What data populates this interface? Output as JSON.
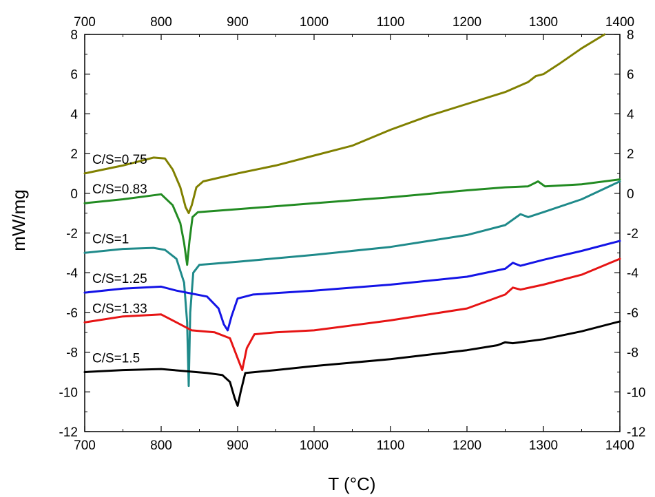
{
  "chart_data": {
    "type": "line",
    "title": "",
    "xlabel": "T (°C)",
    "ylabel": "mW/mg",
    "xlim": [
      700,
      1400
    ],
    "ylim": [
      -12,
      8
    ],
    "x_ticks": [
      700,
      800,
      900,
      1000,
      1100,
      1200,
      1300,
      1400
    ],
    "y_ticks": [
      -12,
      -10,
      -8,
      -6,
      -4,
      -2,
      0,
      2,
      4,
      6,
      8
    ],
    "grid": false,
    "legend": "none",
    "series": [
      {
        "name": "C/S=0.75",
        "color": "#808000",
        "points": [
          [
            700,
            1.0
          ],
          [
            750,
            1.4
          ],
          [
            790,
            1.8
          ],
          [
            805,
            1.75
          ],
          [
            815,
            1.2
          ],
          [
            825,
            0.3
          ],
          [
            832,
            -0.7
          ],
          [
            836,
            -1.0
          ],
          [
            840,
            -0.6
          ],
          [
            846,
            0.3
          ],
          [
            855,
            0.6
          ],
          [
            900,
            1.0
          ],
          [
            950,
            1.4
          ],
          [
            1000,
            1.9
          ],
          [
            1050,
            2.4
          ],
          [
            1100,
            3.2
          ],
          [
            1150,
            3.9
          ],
          [
            1200,
            4.5
          ],
          [
            1250,
            5.1
          ],
          [
            1280,
            5.6
          ],
          [
            1290,
            5.9
          ],
          [
            1300,
            6.0
          ],
          [
            1320,
            6.5
          ],
          [
            1350,
            7.3
          ],
          [
            1380,
            8.0
          ]
        ]
      },
      {
        "name": "C/S=0.83",
        "color": "#228B22",
        "points": [
          [
            700,
            -0.5
          ],
          [
            750,
            -0.3
          ],
          [
            790,
            -0.1
          ],
          [
            800,
            -0.05
          ],
          [
            815,
            -0.6
          ],
          [
            825,
            -1.5
          ],
          [
            830,
            -2.5
          ],
          [
            834,
            -3.6
          ],
          [
            837,
            -2.4
          ],
          [
            841,
            -1.2
          ],
          [
            848,
            -0.95
          ],
          [
            900,
            -0.8
          ],
          [
            1000,
            -0.5
          ],
          [
            1100,
            -0.2
          ],
          [
            1200,
            0.15
          ],
          [
            1250,
            0.3
          ],
          [
            1280,
            0.35
          ],
          [
            1293,
            0.6
          ],
          [
            1302,
            0.35
          ],
          [
            1350,
            0.45
          ],
          [
            1400,
            0.7
          ]
        ]
      },
      {
        "name": "C/S=1",
        "color": "#1F8A8A",
        "points": [
          [
            700,
            -3.0
          ],
          [
            750,
            -2.8
          ],
          [
            790,
            -2.75
          ],
          [
            805,
            -2.85
          ],
          [
            820,
            -3.3
          ],
          [
            830,
            -4.5
          ],
          [
            834,
            -6.5
          ],
          [
            836,
            -9.7
          ],
          [
            838,
            -6.0
          ],
          [
            842,
            -4.0
          ],
          [
            850,
            -3.6
          ],
          [
            900,
            -3.45
          ],
          [
            1000,
            -3.1
          ],
          [
            1100,
            -2.7
          ],
          [
            1200,
            -2.1
          ],
          [
            1250,
            -1.6
          ],
          [
            1270,
            -1.05
          ],
          [
            1280,
            -1.2
          ],
          [
            1300,
            -0.95
          ],
          [
            1350,
            -0.3
          ],
          [
            1400,
            0.6
          ]
        ]
      },
      {
        "name": "C/S=1.25",
        "color": "#1414E6",
        "points": [
          [
            700,
            -5.0
          ],
          [
            750,
            -4.8
          ],
          [
            800,
            -4.7
          ],
          [
            820,
            -4.9
          ],
          [
            840,
            -5.05
          ],
          [
            860,
            -5.2
          ],
          [
            875,
            -5.8
          ],
          [
            882,
            -6.6
          ],
          [
            887,
            -6.9
          ],
          [
            892,
            -6.2
          ],
          [
            900,
            -5.3
          ],
          [
            920,
            -5.1
          ],
          [
            1000,
            -4.9
          ],
          [
            1100,
            -4.6
          ],
          [
            1200,
            -4.2
          ],
          [
            1250,
            -3.8
          ],
          [
            1260,
            -3.5
          ],
          [
            1270,
            -3.65
          ],
          [
            1300,
            -3.35
          ],
          [
            1350,
            -2.9
          ],
          [
            1400,
            -2.4
          ]
        ]
      },
      {
        "name": "C/S=1.33",
        "color": "#E61414",
        "points": [
          [
            700,
            -6.5
          ],
          [
            750,
            -6.2
          ],
          [
            800,
            -6.1
          ],
          [
            820,
            -6.5
          ],
          [
            840,
            -6.9
          ],
          [
            870,
            -7.0
          ],
          [
            890,
            -7.3
          ],
          [
            900,
            -8.3
          ],
          [
            906,
            -8.9
          ],
          [
            912,
            -7.8
          ],
          [
            922,
            -7.1
          ],
          [
            950,
            -7.0
          ],
          [
            1000,
            -6.9
          ],
          [
            1100,
            -6.4
          ],
          [
            1200,
            -5.8
          ],
          [
            1250,
            -5.1
          ],
          [
            1260,
            -4.75
          ],
          [
            1270,
            -4.85
          ],
          [
            1300,
            -4.6
          ],
          [
            1350,
            -4.1
          ],
          [
            1400,
            -3.3
          ]
        ]
      },
      {
        "name": "C/S=1.5",
        "color": "#000000",
        "points": [
          [
            700,
            -9.0
          ],
          [
            750,
            -8.9
          ],
          [
            800,
            -8.85
          ],
          [
            830,
            -8.95
          ],
          [
            860,
            -9.05
          ],
          [
            880,
            -9.15
          ],
          [
            890,
            -9.5
          ],
          [
            896,
            -10.3
          ],
          [
            900,
            -10.7
          ],
          [
            904,
            -10.0
          ],
          [
            910,
            -9.05
          ],
          [
            950,
            -8.9
          ],
          [
            1000,
            -8.7
          ],
          [
            1100,
            -8.35
          ],
          [
            1200,
            -7.9
          ],
          [
            1240,
            -7.65
          ],
          [
            1250,
            -7.5
          ],
          [
            1260,
            -7.55
          ],
          [
            1300,
            -7.35
          ],
          [
            1350,
            -6.95
          ],
          [
            1400,
            -6.45
          ]
        ]
      }
    ]
  }
}
